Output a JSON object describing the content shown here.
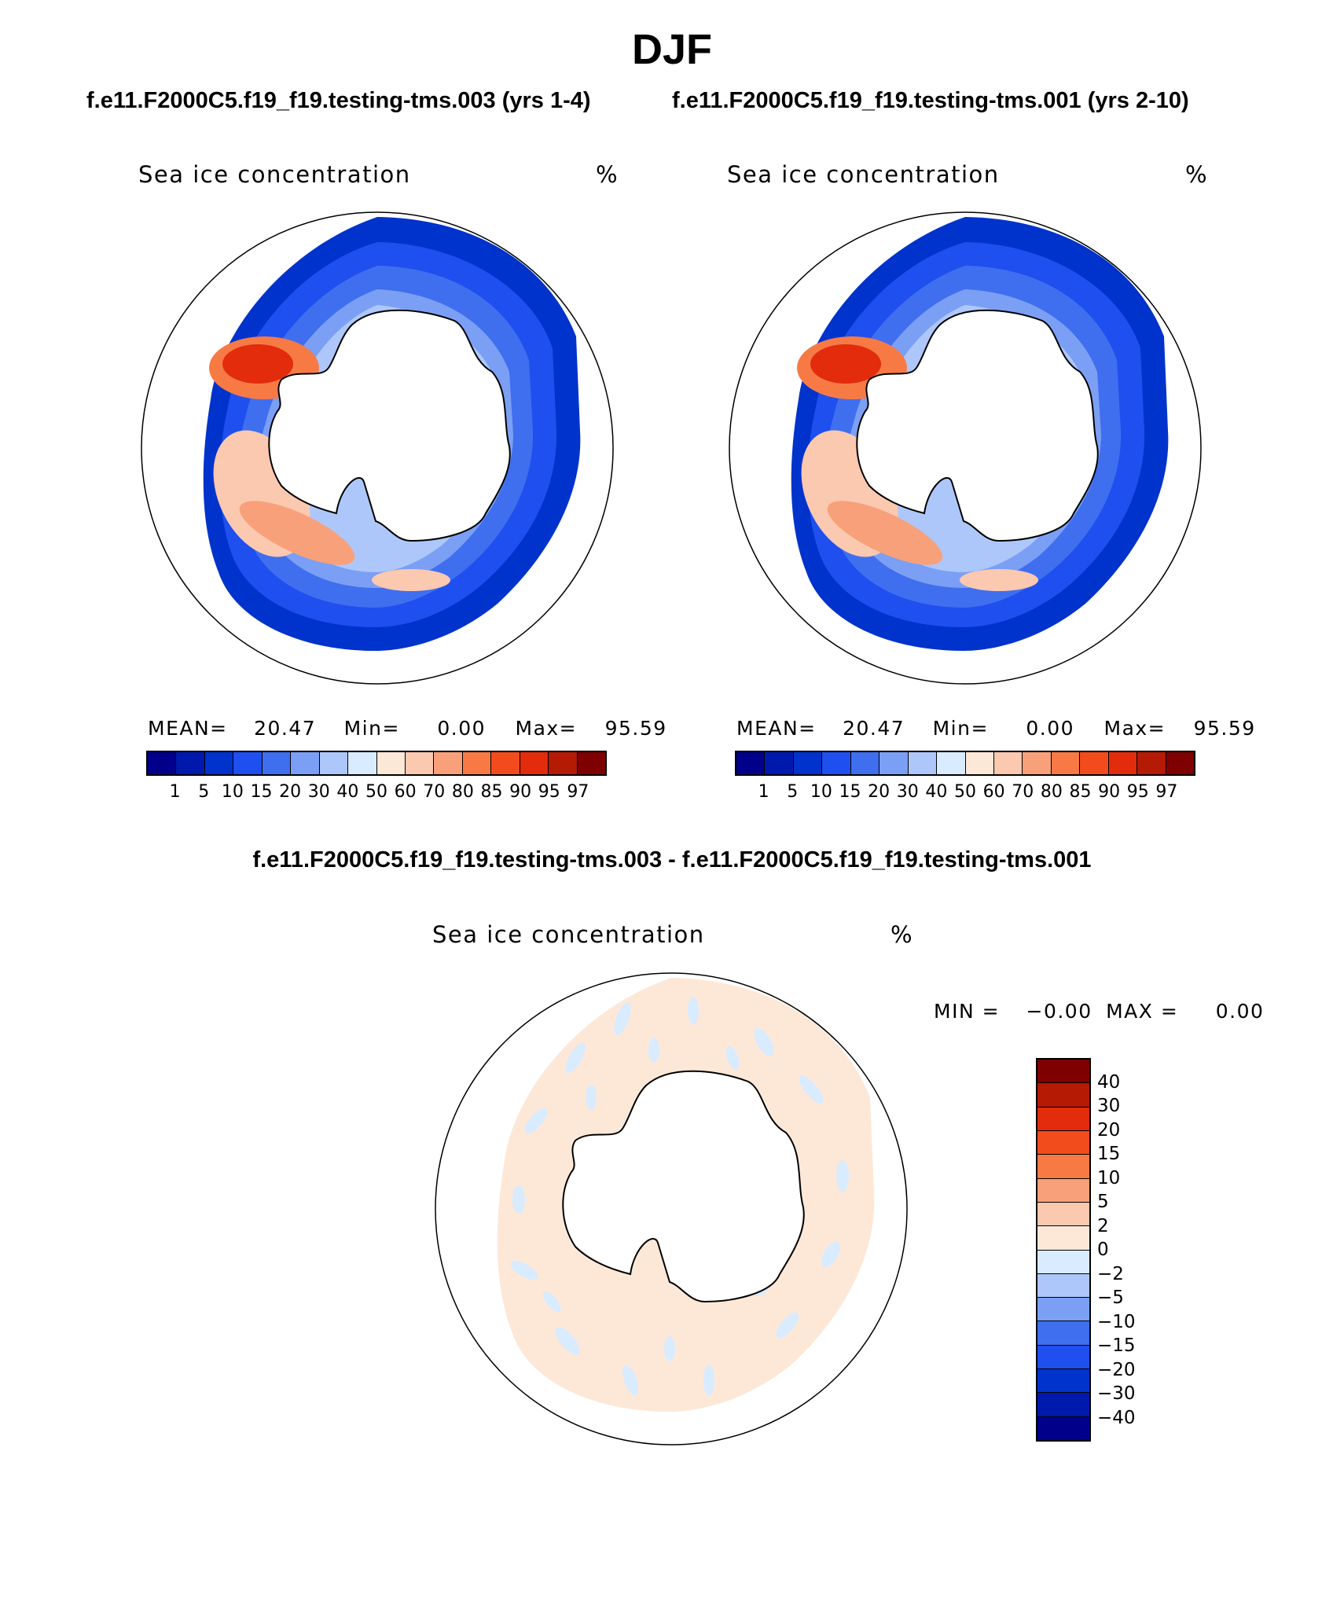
{
  "title": "DJF",
  "panels": [
    {
      "case_title": "f.e11.F2000C5.f19_f19.testing-tms.003 (yrs 1-4)",
      "var_label": "Sea ice concentration",
      "units": "%",
      "mean_label": "MEAN=",
      "mean_value": "20.47",
      "min_label": "Min=",
      "min_value": "0.00",
      "max_label": "Max=",
      "max_value": "95.59"
    },
    {
      "case_title": "f.e11.F2000C5.f19_f19.testing-tms.001 (yrs 2-10)",
      "var_label": "Sea ice concentration",
      "units": "%",
      "mean_label": "MEAN=",
      "mean_value": "20.47",
      "min_label": "Min=",
      "min_value": "0.00",
      "max_label": "Max=",
      "max_value": "95.59"
    }
  ],
  "colorbar": {
    "colors": [
      "#00008a",
      "#0019ad",
      "#0033cc",
      "#1f4fef",
      "#3f6fef",
      "#7b9ff4",
      "#adc7fa",
      "#d9ebff",
      "#fde8d8",
      "#fbc8b0",
      "#f8a07a",
      "#f77a45",
      "#f24c1d",
      "#e22c0b",
      "#b51a05",
      "#7e0000"
    ],
    "ticks": [
      "1",
      "5",
      "10",
      "15",
      "20",
      "30",
      "40",
      "50",
      "60",
      "70",
      "80",
      "85",
      "90",
      "95",
      "97"
    ]
  },
  "diff": {
    "title": "f.e11.F2000C5.f19_f19.testing-tms.003 - f.e11.F2000C5.f19_f19.testing-tms.001",
    "var_label": "Sea ice concentration",
    "units": "%",
    "min_label": "MIN =",
    "min_value": "−0.00",
    "max_label": "MAX =",
    "max_value": "0.00",
    "colors": [
      "#7e0000",
      "#b51a05",
      "#e22c0b",
      "#f24c1d",
      "#f77a45",
      "#f8a07a",
      "#fbc8b0",
      "#fde8d8",
      "#d9ebff",
      "#adc7fa",
      "#7b9ff4",
      "#3f6fef",
      "#1f4fef",
      "#0033cc",
      "#0019ad",
      "#00008a"
    ],
    "ticks": [
      "40",
      "30",
      "20",
      "15",
      "10",
      "5",
      "2",
      "0",
      "−2",
      "−5",
      "−10",
      "−15",
      "−20",
      "−30",
      "−40"
    ]
  }
}
